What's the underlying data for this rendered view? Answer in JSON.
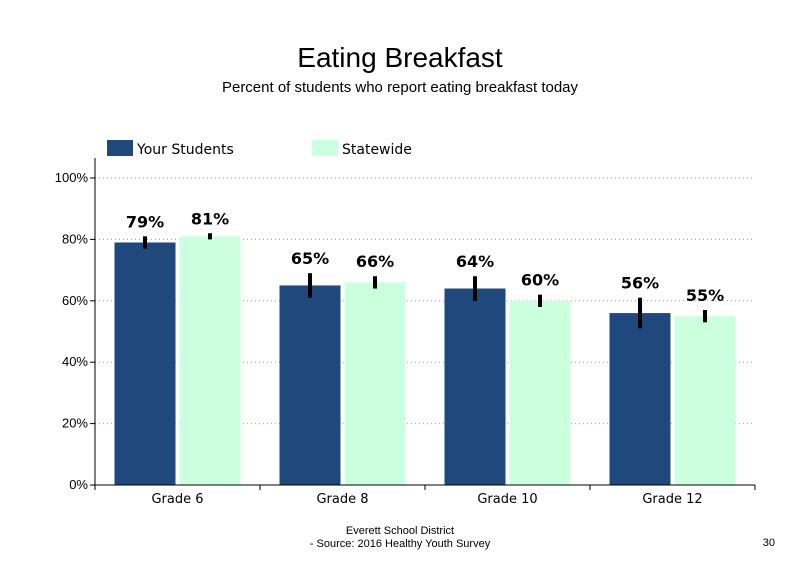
{
  "slide": {
    "title": "Eating Breakfast",
    "subtitle": "Percent of students who report eating breakfast today",
    "footer_line1": "Everett School District",
    "footer_line2": "- Source: 2016 Healthy  Youth Survey",
    "page_number": "30"
  },
  "chart_data": {
    "type": "bar",
    "title": "Eating Breakfast",
    "subtitle": "Percent of students who report eating breakfast today",
    "categories": [
      "Grade 6",
      "Grade 8",
      "Grade 10",
      "Grade 12"
    ],
    "series": [
      {
        "name": "Your Students",
        "color": "#1f497d",
        "values": [
          79,
          65,
          64,
          56
        ],
        "labels": [
          "79%",
          "65%",
          "64%",
          "56%"
        ],
        "error_low": [
          77,
          61,
          60,
          51
        ],
        "error_high": [
          81,
          69,
          68,
          61
        ]
      },
      {
        "name": "Statewide",
        "color": "#ccffdd",
        "values": [
          81,
          66,
          60,
          55
        ],
        "labels": [
          "81%",
          "66%",
          "60%",
          "55%"
        ],
        "error_low": [
          80,
          64,
          58,
          53
        ],
        "error_high": [
          82,
          68,
          62,
          57
        ]
      }
    ],
    "y_ticks": [
      "0%",
      "20%",
      "40%",
      "60%",
      "80%",
      "100%"
    ],
    "y_tick_values": [
      0,
      20,
      40,
      60,
      80,
      100
    ],
    "ylim": [
      0,
      100
    ],
    "xlabel": "",
    "ylabel": "",
    "grid": "dotted horizontal",
    "legend_position": "top-left",
    "error_bar_color": "#000000"
  }
}
